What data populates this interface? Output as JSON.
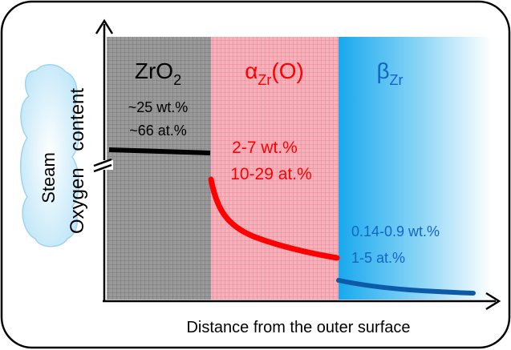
{
  "diagram": {
    "y_axis_label": "Oxygen content",
    "x_axis_label": "Distance from the outer surface",
    "steam_label": "Steam",
    "layers": [
      {
        "name_base": "ZrO",
        "name_sub": "2",
        "name_suffix": "",
        "content_wt": "~25 wt.%",
        "content_at": "~66 at.%",
        "color": "#8c8c8c",
        "text_color": "#000000",
        "curve_color": "#000000"
      },
      {
        "name_base": "α",
        "name_sub": "Zr",
        "name_suffix": "(O)",
        "content_wt": "2-7 wt.%",
        "content_at": "10-29 at.%",
        "color": "#f4a0ad",
        "text_color": "#ff0000",
        "curve_color": "#ff0000"
      },
      {
        "name_base": "β",
        "name_sub": "Zr",
        "name_suffix": "",
        "content_wt": "0.14-0.9 wt.%",
        "content_at": "1-5 at.%",
        "color": "#29b6f0",
        "text_color": "#1565c0",
        "curve_color": "#0d5aa8"
      }
    ]
  }
}
